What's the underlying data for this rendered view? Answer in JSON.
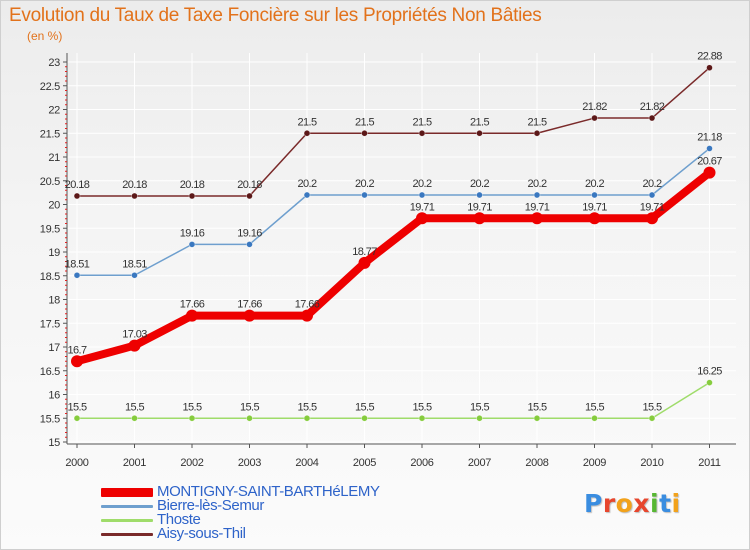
{
  "chart_data": {
    "type": "line",
    "title": "Evolution du Taux de Taxe Foncière sur les Propriétés Non Bâties",
    "subtitle": "(en %)",
    "xlabel": "",
    "ylabel": "(en %)",
    "x": [
      "2000",
      "2001",
      "2002",
      "2003",
      "2004",
      "2005",
      "2006",
      "2007",
      "2008",
      "2009",
      "2010",
      "2011"
    ],
    "ylim": [
      15,
      23
    ],
    "yticks": [
      "15",
      "15.5",
      "16",
      "16.5",
      "17",
      "17.5",
      "18",
      "18.5",
      "19",
      "19.5",
      "20",
      "20.5",
      "21",
      "21.5",
      "22",
      "22.5",
      "23"
    ],
    "series": [
      {
        "name": "Aisy-sous-Thil",
        "color": "#7a2a2a",
        "marker": "#5c1818",
        "values": [
          20.18,
          20.18,
          20.18,
          20.18,
          21.5,
          21.5,
          21.5,
          21.5,
          21.5,
          21.82,
          21.82,
          22.88
        ],
        "labels": [
          "20.18",
          "20.18",
          "20.18",
          "20.18",
          "21.5",
          "21.5",
          "21.5",
          "21.5",
          "21.5",
          "21.82",
          "21.82",
          "22.88"
        ]
      },
      {
        "name": "Bierre-lès-Semur",
        "color": "#6e9fce",
        "marker": "#3a78c0",
        "values": [
          18.51,
          18.51,
          19.16,
          19.16,
          20.2,
          20.2,
          20.2,
          20.2,
          20.2,
          20.2,
          20.2,
          21.18
        ],
        "labels": [
          "18.51",
          "18.51",
          "19.16",
          "19.16",
          "20.2",
          "20.2",
          "20.2",
          "20.2",
          "20.2",
          "20.2",
          "20.2",
          "21.18"
        ]
      },
      {
        "name": "Thoste",
        "color": "#9fdc6a",
        "marker": "#86cc3e",
        "values": [
          15.5,
          15.5,
          15.5,
          15.5,
          15.5,
          15.5,
          15.5,
          15.5,
          15.5,
          15.5,
          15.5,
          16.25
        ],
        "labels": [
          "15.5",
          "15.5",
          "15.5",
          "15.5",
          "15.5",
          "15.5",
          "15.5",
          "15.5",
          "15.5",
          "15.5",
          "15.5",
          "16.25"
        ]
      },
      {
        "name": "MONTIGNY-SAINT-BARTHéLEMY",
        "color": "#ee0000",
        "marker": "#ee0000",
        "values": [
          16.7,
          17.03,
          17.66,
          17.66,
          17.66,
          18.77,
          19.71,
          19.71,
          19.71,
          19.71,
          19.71,
          20.67
        ],
        "labels": [
          "16.7",
          "17.03",
          "17.66",
          "17.66",
          "17.66",
          "18.77",
          "19.71",
          "19.71",
          "19.71",
          "19.71",
          "19.71",
          "20.67"
        ]
      }
    ]
  },
  "legend": [
    {
      "label": "MONTIGNY-SAINT-BARTHéLEMY",
      "color": "#ee0000"
    },
    {
      "label": "Bierre-lès-Semur",
      "color": "#6e9fce"
    },
    {
      "label": "Thoste",
      "color": "#9fdc6a"
    },
    {
      "label": "Aisy-sous-Thil",
      "color": "#7a2a2a"
    }
  ],
  "brand": {
    "letters": [
      "P",
      "r",
      "o",
      "x",
      "i",
      "t",
      "i"
    ],
    "colors": [
      "#3a8de0",
      "#e7462d",
      "#f2a21b",
      "#e7462d",
      "#57b733",
      "#3a8de0",
      "#f2a21b"
    ]
  }
}
